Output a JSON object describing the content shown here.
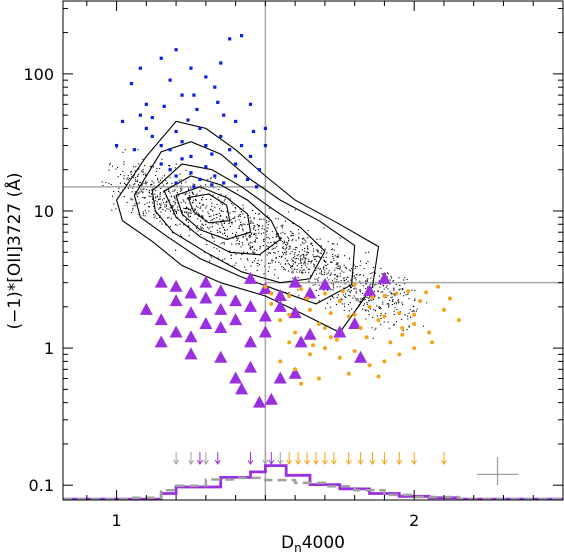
{
  "chart_data": {
    "type": "scatter",
    "xlabel_main": "D",
    "xlabel_sub": "n",
    "xlabel_rest": "4000",
    "ylabel": "(−1)*[OII]3727 (Å)",
    "xlim": [
      0.82,
      2.5
    ],
    "ylim": [
      0.078,
      340
    ],
    "yscale": "log",
    "x_ticks": [
      {
        "value": 1,
        "label": "1"
      },
      {
        "value": 2,
        "label": "2"
      }
    ],
    "y_ticks": [
      {
        "value": 0.1,
        "label": "0.1"
      },
      {
        "value": 1,
        "label": "1"
      },
      {
        "value": 10,
        "label": "10"
      },
      {
        "value": 100,
        "label": "100"
      }
    ],
    "reference_lines": {
      "vertical_x": 1.5,
      "horizontal_y_left": 15,
      "horizontal_y_right": 3
    },
    "colors": {
      "blue": "#0a1ee6",
      "black": "#000000",
      "purple": "#9a2fe0",
      "orange": "#f5a316",
      "grey": "#a0a0a0",
      "ref": "#a6a6a6"
    },
    "series": [
      {
        "marker": "square",
        "color": "blue",
        "points": [
          [
            1.05,
            85
          ],
          [
            1.08,
            110
          ],
          [
            1.1,
            60
          ],
          [
            1.15,
            130
          ],
          [
            1.18,
            90
          ],
          [
            1.2,
            150
          ],
          [
            1.22,
            70
          ],
          [
            1.25,
            110
          ],
          [
            1.27,
            55
          ],
          [
            1.3,
            95
          ],
          [
            1.33,
            80
          ],
          [
            1.35,
            120
          ],
          [
            1.38,
            180
          ],
          [
            1.42,
            190
          ],
          [
            1.45,
            60
          ],
          [
            1.4,
            45
          ],
          [
            1.1,
            40
          ],
          [
            1.12,
            35
          ],
          [
            1.15,
            30
          ],
          [
            1.18,
            28
          ],
          [
            1.2,
            38
          ],
          [
            1.22,
            32
          ],
          [
            1.25,
            25
          ],
          [
            1.28,
            40
          ],
          [
            1.3,
            30
          ],
          [
            1.32,
            26
          ],
          [
            1.35,
            35
          ],
          [
            1.38,
            28
          ],
          [
            1.4,
            22
          ],
          [
            1.42,
            30
          ],
          [
            1.45,
            25
          ],
          [
            1.48,
            20
          ],
          [
            1.15,
            22
          ],
          [
            1.18,
            20
          ],
          [
            1.2,
            18
          ],
          [
            1.22,
            24
          ],
          [
            1.25,
            19
          ],
          [
            1.28,
            17
          ],
          [
            1.3,
            21
          ],
          [
            1.33,
            18
          ],
          [
            1.36,
            16
          ],
          [
            1.4,
            18
          ],
          [
            1.44,
            17
          ],
          [
            1.47,
            15
          ],
          [
            1.08,
            50
          ],
          [
            1.12,
            48
          ],
          [
            1.24,
            46
          ],
          [
            1.36,
            50
          ],
          [
            1.2,
            16
          ],
          [
            1.26,
            15
          ],
          [
            1.32,
            15.5
          ],
          [
            1.0,
            30
          ],
          [
            1.02,
            45
          ],
          [
            1.06,
            28
          ],
          [
            1.5,
            30
          ],
          [
            1.5,
            40
          ],
          [
            1.46,
            38
          ],
          [
            1.34,
            62
          ],
          [
            1.26,
            70
          ],
          [
            1.16,
            58
          ]
        ]
      },
      {
        "marker": "triangle",
        "color": "purple",
        "points": [
          [
            1.15,
            3
          ],
          [
            1.2,
            2.8
          ],
          [
            1.25,
            2.5
          ],
          [
            1.3,
            3
          ],
          [
            1.35,
            2.6
          ],
          [
            1.4,
            2.2
          ],
          [
            1.45,
            3.2
          ],
          [
            1.5,
            2.7
          ],
          [
            1.55,
            2.4
          ],
          [
            1.6,
            3
          ],
          [
            1.65,
            2.5
          ],
          [
            1.7,
            2.9
          ],
          [
            1.25,
            1.8
          ],
          [
            1.3,
            1.5
          ],
          [
            1.35,
            1.9
          ],
          [
            1.4,
            1.6
          ],
          [
            1.45,
            2
          ],
          [
            1.5,
            1.7
          ],
          [
            1.55,
            2
          ],
          [
            1.6,
            1.8
          ],
          [
            1.2,
            1.3
          ],
          [
            1.25,
            1.2
          ],
          [
            1.35,
            1.4
          ],
          [
            1.45,
            1.1
          ],
          [
            1.5,
            1.3
          ],
          [
            1.15,
            1.6
          ],
          [
            1.25,
            0.9
          ],
          [
            1.35,
            0.85
          ],
          [
            1.45,
            0.72
          ],
          [
            1.4,
            0.6
          ],
          [
            1.42,
            0.5
          ],
          [
            1.48,
            0.4
          ],
          [
            1.52,
            0.42
          ],
          [
            1.55,
            0.6
          ],
          [
            1.6,
            0.65
          ],
          [
            1.62,
            1.1
          ],
          [
            1.65,
            1.25
          ],
          [
            1.75,
            1.3
          ],
          [
            1.8,
            1.5
          ],
          [
            1.85,
            2.6
          ],
          [
            1.9,
            3.2
          ],
          [
            1.82,
            0.85
          ],
          [
            1.2,
            2.2
          ],
          [
            1.3,
            2.3
          ],
          [
            1.1,
            1.9
          ],
          [
            1.15,
            1.1
          ]
        ]
      },
      {
        "marker": "circle",
        "color": "orange",
        "points": [
          [
            1.5,
            2.8
          ],
          [
            1.52,
            2.1
          ],
          [
            1.55,
            1.6
          ],
          [
            1.58,
            2.4
          ],
          [
            1.6,
            1.3
          ],
          [
            1.62,
            2.7
          ],
          [
            1.65,
            1.9
          ],
          [
            1.68,
            1.5
          ],
          [
            1.7,
            2.5
          ],
          [
            1.72,
            1.2
          ],
          [
            1.75,
            2.2
          ],
          [
            1.78,
            1.7
          ],
          [
            1.8,
            2.9
          ],
          [
            1.82,
            1.4
          ],
          [
            1.85,
            2
          ],
          [
            1.88,
            1.6
          ],
          [
            1.9,
            2.4
          ],
          [
            1.92,
            1.1
          ],
          [
            1.95,
            1.8
          ],
          [
            1.98,
            2.6
          ],
          [
            2,
            1.5
          ],
          [
            2.02,
            2.2
          ],
          [
            2.05,
            1.3
          ],
          [
            2.08,
            2.8
          ],
          [
            2.1,
            1.9
          ],
          [
            2.15,
            1.6
          ],
          [
            1.55,
            0.8
          ],
          [
            1.6,
            0.7
          ],
          [
            1.65,
            0.9
          ],
          [
            1.7,
            1
          ],
          [
            1.75,
            0.85
          ],
          [
            1.8,
            0.95
          ],
          [
            1.85,
            0.75
          ],
          [
            1.9,
            0.8
          ],
          [
            1.95,
            0.9
          ],
          [
            2,
            1
          ],
          [
            1.62,
            0.55
          ],
          [
            1.68,
            0.6
          ],
          [
            1.78,
            0.65
          ],
          [
            1.88,
            0.62
          ],
          [
            1.58,
            1.1
          ],
          [
            1.66,
            1.05
          ],
          [
            1.74,
            1.15
          ],
          [
            1.84,
            1.2
          ],
          [
            1.96,
            1.25
          ],
          [
            2.06,
            1.1
          ],
          [
            1.52,
            2.5
          ],
          [
            1.64,
            2.3
          ],
          [
            1.76,
            2.6
          ],
          [
            1.86,
            2.35
          ],
          [
            1.94,
            2.5
          ],
          [
            2.04,
            2.55
          ],
          [
            2.12,
            2.3
          ],
          [
            1.72,
            1.8
          ],
          [
            1.8,
            1.75
          ],
          [
            1.9,
            1.7
          ],
          [
            2.0,
            1.75
          ],
          [
            1.58,
            1.75
          ],
          [
            1.7,
            1.4
          ],
          [
            1.96,
            1.4
          ]
        ]
      }
    ],
    "arrow_markers": [
      {
        "color": "grey",
        "x": [
          1.2,
          1.25,
          1.3,
          1.5,
          1.55
        ]
      },
      {
        "color": "purple",
        "x": [
          1.28,
          1.34,
          1.45,
          1.52
        ]
      },
      {
        "color": "orange",
        "x": [
          1.58,
          1.61,
          1.64,
          1.67,
          1.7,
          1.73,
          1.78,
          1.82,
          1.86,
          1.9,
          1.95,
          2.0,
          2.1
        ]
      }
    ],
    "error_bar": {
      "x": 2.28,
      "y": 0.12,
      "dx": 0.07,
      "ylow": 0.1,
      "yhigh": 0.16
    },
    "histograms": [
      {
        "color": "purple",
        "style": "solid",
        "bins": [
          0.82,
          1.15,
          1.2,
          1.35,
          1.45,
          1.5,
          1.57,
          1.65,
          1.75,
          1.85,
          1.95,
          2.05,
          2.15,
          2.5
        ],
        "heights": [
          0.079,
          0.087,
          0.097,
          0.114,
          0.125,
          0.139,
          0.118,
          0.101,
          0.094,
          0.087,
          0.083,
          0.081,
          0.079
        ]
      },
      {
        "color": "grey",
        "style": "dashed",
        "bins": [
          0.82,
          1.05,
          1.15,
          1.2,
          1.3,
          1.4,
          1.5,
          1.6,
          1.7,
          1.8,
          1.9,
          2.0,
          2.15,
          2.5
        ],
        "heights": [
          0.079,
          0.081,
          0.092,
          0.099,
          0.11,
          0.113,
          0.109,
          0.104,
          0.098,
          0.092,
          0.085,
          0.082,
          0.079
        ]
      }
    ],
    "contours": [
      [
        [
          1.0,
          12
        ],
        [
          1.1,
          25
        ],
        [
          1.2,
          45
        ],
        [
          1.3,
          40
        ],
        [
          1.4,
          28
        ],
        [
          1.5,
          18
        ],
        [
          1.6,
          12
        ],
        [
          1.75,
          8
        ],
        [
          1.88,
          5.5
        ],
        [
          1.86,
          2.8
        ],
        [
          1.75,
          1.3
        ],
        [
          1.62,
          1.8
        ],
        [
          1.5,
          2.4
        ],
        [
          1.35,
          3
        ],
        [
          1.22,
          4
        ],
        [
          1.12,
          6
        ],
        [
          1.02,
          8.5
        ]
      ],
      [
        [
          1.06,
          13
        ],
        [
          1.15,
          27
        ],
        [
          1.25,
          32
        ],
        [
          1.35,
          26
        ],
        [
          1.45,
          17
        ],
        [
          1.55,
          12
        ],
        [
          1.68,
          8.5
        ],
        [
          1.8,
          5.6
        ],
        [
          1.79,
          2.9
        ],
        [
          1.67,
          2.1
        ],
        [
          1.55,
          2.6
        ],
        [
          1.42,
          3.3
        ],
        [
          1.28,
          4.5
        ],
        [
          1.17,
          6.5
        ],
        [
          1.08,
          9
        ]
      ],
      [
        [
          1.12,
          14
        ],
        [
          1.22,
          22
        ],
        [
          1.32,
          20
        ],
        [
          1.42,
          15
        ],
        [
          1.52,
          10.5
        ],
        [
          1.62,
          7.5
        ],
        [
          1.7,
          5.1
        ],
        [
          1.65,
          3.2
        ],
        [
          1.55,
          3
        ],
        [
          1.42,
          3.6
        ],
        [
          1.3,
          5
        ],
        [
          1.19,
          7
        ],
        [
          1.13,
          10
        ]
      ],
      [
        [
          1.16,
          14
        ],
        [
          1.25,
          18
        ],
        [
          1.35,
          15.5
        ],
        [
          1.44,
          12
        ],
        [
          1.52,
          8.5
        ],
        [
          1.55,
          6.2
        ],
        [
          1.48,
          4.8
        ],
        [
          1.38,
          5
        ],
        [
          1.28,
          6.5
        ],
        [
          1.2,
          9
        ]
      ],
      [
        [
          1.2,
          13
        ],
        [
          1.28,
          15
        ],
        [
          1.37,
          12.5
        ],
        [
          1.44,
          9.5
        ],
        [
          1.45,
          7
        ],
        [
          1.37,
          6.2
        ],
        [
          1.28,
          7.3
        ],
        [
          1.22,
          9.5
        ]
      ],
      [
        [
          1.24,
          12.5
        ],
        [
          1.31,
          13.3
        ],
        [
          1.37,
          11
        ],
        [
          1.38,
          8.5
        ],
        [
          1.31,
          8.2
        ],
        [
          1.26,
          9.8
        ]
      ]
    ],
    "background_dots": {
      "count": 1500,
      "seed": 7
    }
  }
}
